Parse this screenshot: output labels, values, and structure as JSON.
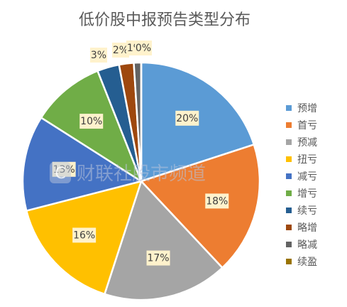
{
  "chart_data": {
    "type": "pie",
    "title": "低价股中报预告类型分布",
    "categories": [
      "预增",
      "首亏",
      "预减",
      "扭亏",
      "减亏",
      "增亏",
      "续亏",
      "略增",
      "略减",
      "续盈"
    ],
    "values": [
      20,
      18,
      17,
      16,
      13,
      10,
      3,
      2,
      1,
      0
    ],
    "labels": [
      "20%",
      "18%",
      "17%",
      "16%",
      "13%",
      "10%",
      "3%",
      "2%",
      "1%",
      "0%"
    ],
    "colors": [
      "#5b9bd5",
      "#ed7d31",
      "#a5a5a5",
      "#ffc000",
      "#4472c4",
      "#70ad47",
      "#255e91",
      "#9e480e",
      "#636363",
      "#997300"
    ],
    "legend": "right"
  },
  "watermark": "财联社股市频道"
}
